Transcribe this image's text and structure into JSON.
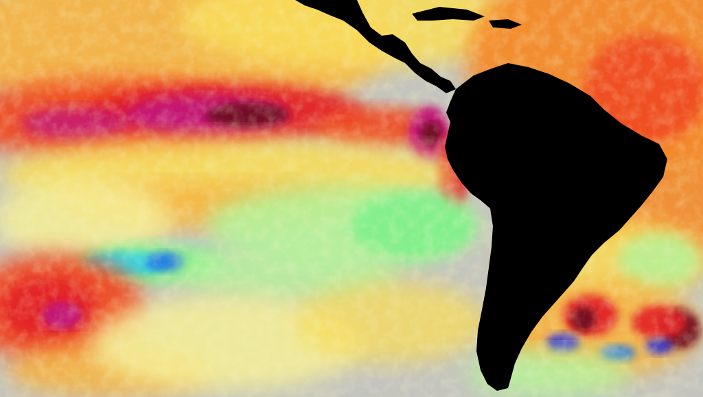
{
  "map": {
    "palette": {
      "land": "#000000",
      "neutral_gray": "#c4c4be",
      "pale_yellow": "#f5ef96",
      "yellow": "#f8dc5a",
      "orange_light": "#f7b341",
      "orange": "#f48a2c",
      "red_orange": "#ef4a22",
      "red": "#e32127",
      "magenta": "#c2167a",
      "dark_red": "#6e0f24",
      "light_green": "#b5f29a",
      "green": "#7ef08a",
      "cyan": "#34d6e6",
      "blue": "#1e74e8",
      "deep_blue": "#2b2bd6"
    },
    "regions": [
      "central-america",
      "south-america",
      "caribbean-islands"
    ]
  }
}
